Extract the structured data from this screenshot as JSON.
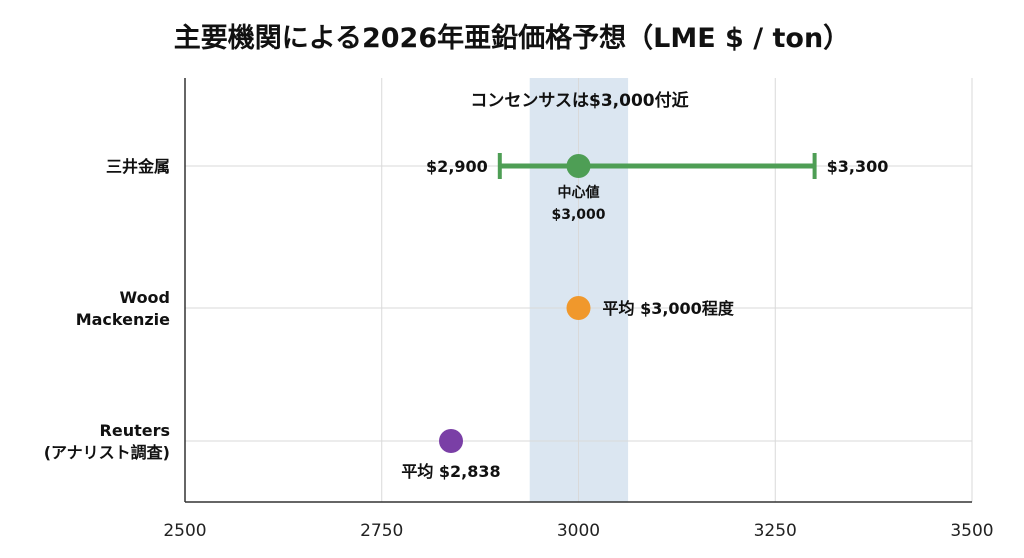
{
  "chart_data": {
    "type": "scatter",
    "title": "主要機関による2026年亜鉛価格予想（LME $ / ton）",
    "xlim": [
      2500,
      3500
    ],
    "x_ticks": [
      "2500",
      "2750",
      "3000",
      "3250",
      "3500"
    ],
    "grid": true,
    "consensus_band": {
      "range": [
        2938,
        3063
      ],
      "label": "コンセンサスは$3,000付近",
      "color": "#dbe6f1"
    },
    "categories": [
      "三井金属",
      "Wood\nMackenzie",
      "Reuters\n(アナリスト調査)"
    ],
    "series": [
      {
        "category": "三井金属",
        "kind": "range",
        "low": 2900,
        "high": 3300,
        "center": 3000,
        "color": "#4e9e55",
        "low_label": "$2,900",
        "high_label": "$3,300",
        "center_label": [
          "中心値",
          "$3,000"
        ]
      },
      {
        "category": "Wood Mackenzie",
        "kind": "point",
        "value": 3000,
        "color": "#f0982c",
        "label": "平均 $3,000程度"
      },
      {
        "category": "Reuters (アナリスト調査)",
        "kind": "point",
        "value": 2838,
        "color": "#7a3fa6",
        "label": "平均 $2,838"
      }
    ]
  }
}
